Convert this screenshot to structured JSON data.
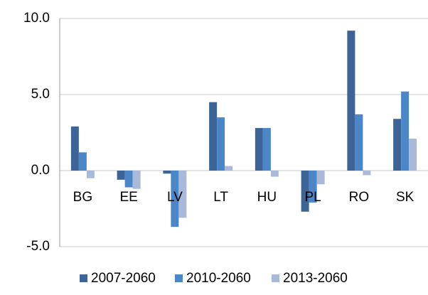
{
  "chart_data": {
    "type": "bar",
    "categories": [
      "BG",
      "EE",
      "LV",
      "LT",
      "HU",
      "PL",
      "RO",
      "SK"
    ],
    "series": [
      {
        "name": "2007-2060",
        "color": "#3d6496",
        "values": [
          2.9,
          -0.6,
          -0.2,
          4.5,
          2.8,
          -2.7,
          9.2,
          3.4
        ]
      },
      {
        "name": "2010-2060",
        "color": "#4a86c8",
        "values": [
          1.2,
          -1.1,
          -3.7,
          3.5,
          2.8,
          -2.1,
          3.7,
          5.2
        ]
      },
      {
        "name": "2013-2060",
        "color": "#a9b9d9",
        "values": [
          -0.5,
          -1.2,
          -3.1,
          0.3,
          -0.4,
          -0.9,
          -0.3,
          2.1
        ]
      }
    ],
    "ylim": [
      -5,
      10
    ],
    "yticks": [
      {
        "value": -5,
        "label": "-5.0"
      },
      {
        "value": 0,
        "label": "0.0"
      },
      {
        "value": 5,
        "label": "5.0"
      },
      {
        "value": 10,
        "label": "10.0"
      }
    ],
    "grid": true,
    "legend": "bottom"
  }
}
